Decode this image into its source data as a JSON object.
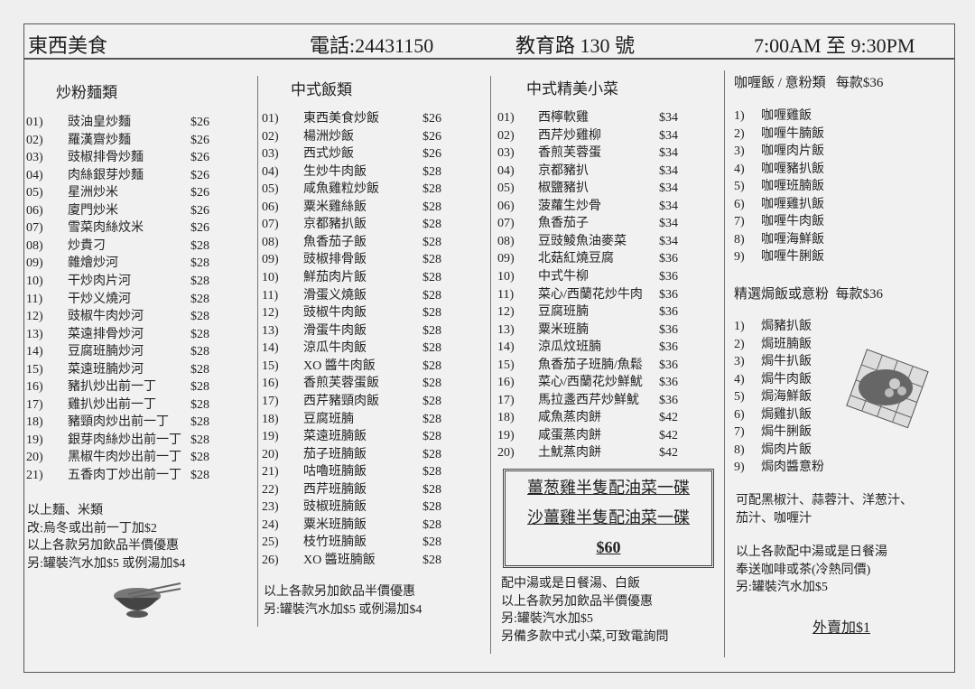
{
  "header": {
    "restaurant_name": "東西美食",
    "phone": "電話:24431150",
    "address": "教育路 130 號",
    "hours": "7:00AM 至 9:30PM"
  },
  "noodles": {
    "title": "炒粉麵類",
    "items": [
      {
        "no": "01)",
        "name": "豉油皇炒麵",
        "price": "$26"
      },
      {
        "no": "02)",
        "name": "羅漢齋炒麵",
        "price": "$26"
      },
      {
        "no": "03)",
        "name": "豉椒排骨炒麵",
        "price": "$26"
      },
      {
        "no": "04)",
        "name": "肉絲銀芽炒麵",
        "price": "$26"
      },
      {
        "no": "05)",
        "name": "星洲炒米",
        "price": "$26"
      },
      {
        "no": "06)",
        "name": "廈門炒米",
        "price": "$26"
      },
      {
        "no": "07)",
        "name": "雪菜肉絲炆米",
        "price": "$26"
      },
      {
        "no": "08)",
        "name": "炒貴刁",
        "price": "$28"
      },
      {
        "no": "09)",
        "name": "雜燴炒河",
        "price": "$28"
      },
      {
        "no": "10)",
        "name": "干炒肉片河",
        "price": "$28"
      },
      {
        "no": "11)",
        "name": "干炒义燒河",
        "price": "$28"
      },
      {
        "no": "12)",
        "name": "豉椒牛肉炒河",
        "price": "$28"
      },
      {
        "no": "13)",
        "name": "菜遠排骨炒河",
        "price": "$28"
      },
      {
        "no": "14)",
        "name": "豆腐班腩炒河",
        "price": "$28"
      },
      {
        "no": "15)",
        "name": "菜遠班腩炒河",
        "price": "$28"
      },
      {
        "no": "16)",
        "name": "豬扒炒出前一丁",
        "price": "$28"
      },
      {
        "no": "17)",
        "name": "雞扒炒出前一丁",
        "price": "$28"
      },
      {
        "no": "18)",
        "name": "豬頸肉炒出前一丁",
        "price": "$28"
      },
      {
        "no": "19)",
        "name": "銀芽肉絲炒出前一丁",
        "price": "$28"
      },
      {
        "no": "20)",
        "name": "黑椒牛肉炒出前一丁",
        "price": "$28"
      },
      {
        "no": "21)",
        "name": "五香肉丁炒出前一丁",
        "price": "$28"
      }
    ],
    "notes": [
      "以上麵、米類",
      "改:烏冬或出前一丁加$2",
      "以上各款另加飲品半價優惠",
      "另:罐裝汽水加$5 或例湯加$4"
    ]
  },
  "rice": {
    "title": "中式飯類",
    "items": [
      {
        "no": "01)",
        "name": "東西美食炒飯",
        "price": "$26"
      },
      {
        "no": "02)",
        "name": "楊洲炒飯",
        "price": "$26"
      },
      {
        "no": "03)",
        "name": "西式炒飯",
        "price": "$26"
      },
      {
        "no": "04)",
        "name": "生炒牛肉飯",
        "price": "$28"
      },
      {
        "no": "05)",
        "name": "咸魚雞粒炒飯",
        "price": "$28"
      },
      {
        "no": "06)",
        "name": "粟米雞絲飯",
        "price": "$28"
      },
      {
        "no": "07)",
        "name": "京都豬扒飯",
        "price": "$28"
      },
      {
        "no": "08)",
        "name": "魚香茄子飯",
        "price": "$28"
      },
      {
        "no": "09)",
        "name": "豉椒排骨飯",
        "price": "$28"
      },
      {
        "no": "10)",
        "name": "鮮茄肉片飯",
        "price": "$28"
      },
      {
        "no": "11)",
        "name": "滑蛋义燒飯",
        "price": "$28"
      },
      {
        "no": "12)",
        "name": "豉椒牛肉飯",
        "price": "$28"
      },
      {
        "no": "13)",
        "name": "滑蛋牛肉飯",
        "price": "$28"
      },
      {
        "no": "14)",
        "name": "涼瓜牛肉飯",
        "price": "$28"
      },
      {
        "no": "15)",
        "name": "XO 醬牛肉飯",
        "price": "$28"
      },
      {
        "no": "16)",
        "name": "香煎芙蓉蛋飯",
        "price": "$28"
      },
      {
        "no": "17)",
        "name": "西芹豬頸肉飯",
        "price": "$28"
      },
      {
        "no": "18)",
        "name": "豆腐班腩",
        "price": "$28"
      },
      {
        "no": "19)",
        "name": "菜遠班腩飯",
        "price": "$28"
      },
      {
        "no": "20)",
        "name": "茄子班腩飯",
        "price": "$28"
      },
      {
        "no": "21)",
        "name": "咕嚕班腩飯",
        "price": "$28"
      },
      {
        "no": "22)",
        "name": "西芹班腩飯",
        "price": "$28"
      },
      {
        "no": "23)",
        "name": "豉椒班腩飯",
        "price": "$28"
      },
      {
        "no": "24)",
        "name": "粟米班腩飯",
        "price": "$28"
      },
      {
        "no": "25)",
        "name": "枝竹班腩飯",
        "price": "$28"
      },
      {
        "no": "26)",
        "name": "XO 醬班腩飯",
        "price": "$28"
      }
    ],
    "notes": [
      "以上各款另加飲品半價優惠",
      "另:罐裝汽水加$5 或例湯加$4"
    ]
  },
  "dishes": {
    "title": "中式精美小菜",
    "items": [
      {
        "no": "01)",
        "name": "西檸軟雞",
        "price": "$34"
      },
      {
        "no": "02)",
        "name": "西芹炒雞柳",
        "price": "$34"
      },
      {
        "no": "03)",
        "name": "香煎芙蓉蛋",
        "price": "$34"
      },
      {
        "no": "04)",
        "name": "京都豬扒",
        "price": "$34"
      },
      {
        "no": "05)",
        "name": "椒鹽豬扒",
        "price": "$34"
      },
      {
        "no": "06)",
        "name": "菠蘿生炒骨",
        "price": "$34"
      },
      {
        "no": "07)",
        "name": "魚香茄子",
        "price": "$34"
      },
      {
        "no": "08)",
        "name": "豆豉鯪魚油麥菜",
        "price": "$34"
      },
      {
        "no": "09)",
        "name": "北菇紅燒豆腐",
        "price": "$36"
      },
      {
        "no": "10)",
        "name": "中式牛柳",
        "price": "$36"
      },
      {
        "no": "11)",
        "name": "菜心/西蘭花炒牛肉",
        "price": "$36"
      },
      {
        "no": "12)",
        "name": "豆腐班腩",
        "price": "$36"
      },
      {
        "no": "13)",
        "name": "粟米班腩",
        "price": "$36"
      },
      {
        "no": "14)",
        "name": "涼瓜炆班腩",
        "price": "$36"
      },
      {
        "no": "15)",
        "name": "魚香茄子班腩/魚鬆",
        "price": "$36"
      },
      {
        "no": "16)",
        "name": "菜心/西蘭花炒鮮魷",
        "price": "$36"
      },
      {
        "no": "17)",
        "name": "馬拉盞西芹炒鮮魷",
        "price": "$36"
      },
      {
        "no": "18)",
        "name": "咸魚蒸肉餅",
        "price": "$42"
      },
      {
        "no": "19)",
        "name": "咸蛋蒸肉餅",
        "price": "$42"
      },
      {
        "no": "20)",
        "name": "土魷蒸肉餅",
        "price": "$42"
      }
    ],
    "combo": {
      "line1": "薑葱雞半隻配油菜一碟",
      "line2": "沙薑雞半隻配油菜一碟",
      "price": "$60"
    },
    "notes": [
      "配中湯或是日餐湯、白飯",
      "以上各款另加飲品半價優惠",
      "另:罐裝汽水加$5",
      "另備多款中式小菜,可致電詢問"
    ]
  },
  "curry": {
    "title": "咖喱飯 / 意粉類",
    "price_note": "每款$36",
    "items": [
      {
        "no": "1)",
        "name": "咖喱雞飯"
      },
      {
        "no": "2)",
        "name": "咖喱牛腩飯"
      },
      {
        "no": "3)",
        "name": "咖喱肉片飯"
      },
      {
        "no": "4)",
        "name": "咖喱豬扒飯"
      },
      {
        "no": "5)",
        "name": "咖喱班腩飯"
      },
      {
        "no": "6)",
        "name": "咖喱雞扒飯"
      },
      {
        "no": "7)",
        "name": "咖喱牛肉飯"
      },
      {
        "no": "8)",
        "name": "咖喱海鮮飯"
      },
      {
        "no": "9)",
        "name": "咖喱牛脷飯"
      }
    ]
  },
  "baked": {
    "title": "精選焗飯或意粉",
    "price_note": "每款$36",
    "items": [
      {
        "no": "1)",
        "name": "焗豬扒飯"
      },
      {
        "no": "2)",
        "name": "焗班腩飯"
      },
      {
        "no": "3)",
        "name": "焗牛扒飯"
      },
      {
        "no": "4)",
        "name": "焗牛肉飯"
      },
      {
        "no": "5)",
        "name": "焗海鮮飯"
      },
      {
        "no": "6)",
        "name": "焗雞扒飯"
      },
      {
        "no": "7)",
        "name": "焗牛脷飯"
      },
      {
        "no": "8)",
        "name": "焗肉片飯"
      },
      {
        "no": "9)",
        "name": "焗肉醬意粉"
      }
    ],
    "sauce_notes": [
      "可配黑椒汁、蒜蓉汁、洋葱汁、",
      "茄汁、咖喱汁"
    ],
    "notes": [
      "以上各款配中湯或是日餐湯",
      "奉送咖啡或茶(冷熱同價)",
      "另:罐裝汽水加$5"
    ],
    "takeaway": "外賣加$1"
  }
}
